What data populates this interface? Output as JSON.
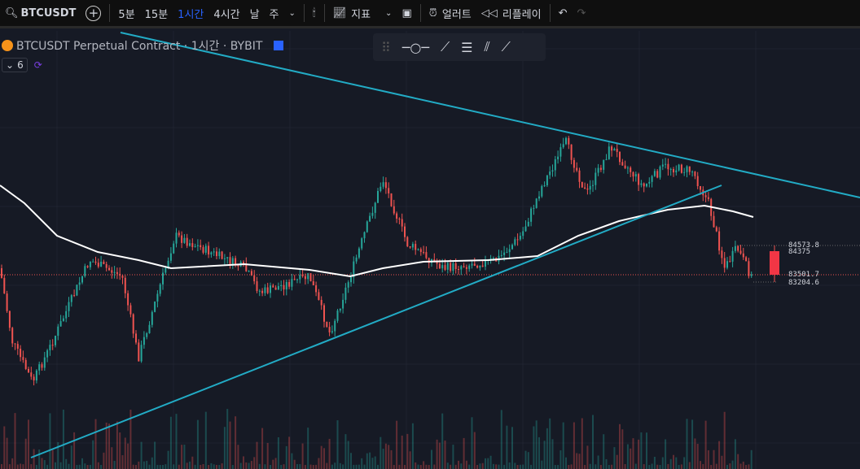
{
  "toolbar": {
    "symbol": "BTCUSDT",
    "intervals": [
      "5분",
      "15분",
      "1시간",
      "4시간",
      "날",
      "주"
    ],
    "active_interval": "1시간",
    "indicators_label": "지표",
    "alert_label": "얼러트",
    "replay_label": "리플레이"
  },
  "legend": {
    "title": "BTCUSDT Perpetual Contract · 1시간 · BYBIT",
    "indicator_count": "6"
  },
  "price_labels": [
    "84573.8",
    "84375",
    "83501.7",
    "83204.6"
  ],
  "colors": {
    "up": "#26a69a",
    "down": "#ef5350",
    "trendline": "#22abc5",
    "ma": "#ffffff",
    "background": "#161a25",
    "active": "#2962ff"
  }
}
